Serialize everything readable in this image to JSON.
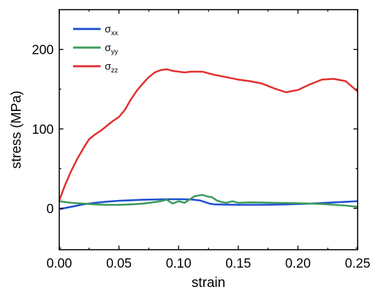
{
  "chart_data": {
    "type": "line",
    "xlabel": "strain",
    "ylabel": "stress (MPa)",
    "xlim": [
      0,
      0.25
    ],
    "ylim": [
      -52,
      250
    ],
    "xticks": [
      0.0,
      0.05,
      0.1,
      0.15,
      0.2,
      0.25
    ],
    "xtick_labels": [
      "0.00",
      "0.05",
      "0.10",
      "0.15",
      "0.20",
      "0.25"
    ],
    "yticks": [
      0,
      100,
      200
    ],
    "ytick_labels": [
      "0",
      "100",
      "200"
    ],
    "grid": false,
    "legend_position": "top-left",
    "series": [
      {
        "name": "σxx",
        "label_base": "σ",
        "label_sub": "xx",
        "color": "#1f4fd0",
        "x": [
          0.0,
          0.01,
          0.02,
          0.03,
          0.04,
          0.05,
          0.06,
          0.07,
          0.08,
          0.09,
          0.1,
          0.11,
          0.118,
          0.122,
          0.126,
          0.13,
          0.15,
          0.17,
          0.19,
          0.21,
          0.23,
          0.25
        ],
        "y": [
          -1,
          2,
          5,
          7,
          8.5,
          9.5,
          10.2,
          10.8,
          11.2,
          11.5,
          11.5,
          11.3,
          10,
          8,
          6,
          5,
          4.5,
          4.5,
          5,
          6,
          7.5,
          9
        ]
      },
      {
        "name": "σyy",
        "label_base": "σ",
        "label_sub": "yy",
        "color": "#3a9a5a",
        "x": [
          0.0,
          0.01,
          0.02,
          0.03,
          0.04,
          0.05,
          0.06,
          0.07,
          0.08,
          0.085,
          0.09,
          0.095,
          0.1,
          0.105,
          0.11,
          0.113,
          0.116,
          0.12,
          0.124,
          0.128,
          0.132,
          0.136,
          0.14,
          0.145,
          0.15,
          0.16,
          0.18,
          0.2,
          0.22,
          0.24,
          0.25
        ],
        "y": [
          9,
          7,
          6,
          5,
          4.5,
          4.5,
          5,
          6,
          8,
          9,
          11,
          6,
          9,
          7,
          12,
          15,
          16,
          17,
          15,
          14,
          10,
          8,
          7,
          9,
          7,
          7.5,
          7,
          6.5,
          5.5,
          3.5,
          2
        ]
      },
      {
        "name": "σzz",
        "label_base": "σ",
        "label_sub": "zz",
        "color": "#e03030",
        "x": [
          0.0,
          0.005,
          0.01,
          0.015,
          0.02,
          0.025,
          0.03,
          0.035,
          0.04,
          0.045,
          0.05,
          0.055,
          0.06,
          0.065,
          0.07,
          0.075,
          0.08,
          0.085,
          0.09,
          0.095,
          0.1,
          0.105,
          0.11,
          0.115,
          0.12,
          0.125,
          0.13,
          0.14,
          0.15,
          0.16,
          0.17,
          0.18,
          0.19,
          0.2,
          0.21,
          0.22,
          0.23,
          0.24,
          0.25
        ],
        "y": [
          10,
          30,
          47,
          62,
          75,
          87,
          93,
          98,
          104,
          110,
          115,
          124,
          137,
          148,
          157,
          165,
          171,
          174,
          175,
          173,
          172,
          171,
          172,
          172,
          172,
          170,
          168,
          165,
          162,
          160,
          157,
          151,
          146,
          149,
          156,
          162,
          163,
          160,
          147
        ]
      }
    ]
  }
}
